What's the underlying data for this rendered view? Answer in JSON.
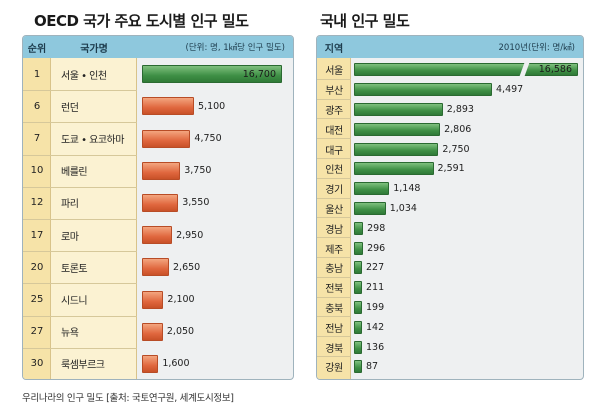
{
  "chart_data": [
    {
      "type": "bar",
      "orientation": "horizontal",
      "title": "OECD 국가 주요 도시별 인구 밀도",
      "headers": {
        "rank": "순위",
        "name": "국가명",
        "unit_note": "(단위: 명, 1㎢당 인구 밀도)"
      },
      "ranks": [
        "1",
        "6",
        "7",
        "10",
        "12",
        "17",
        "20",
        "25",
        "27",
        "30"
      ],
      "categories": [
        "서울 • 인천",
        "런던",
        "도쿄 • 요코하마",
        "베를린",
        "파리",
        "로마",
        "토론토",
        "시드니",
        "뉴욕",
        "룩셈부르크"
      ],
      "values": [
        16700,
        5100,
        4750,
        3750,
        3550,
        2950,
        2650,
        2100,
        2050,
        1600
      ],
      "labels": [
        "16,700",
        "5,100",
        "4,750",
        "3,750",
        "3,550",
        "2,950",
        "2,650",
        "2,100",
        "2,050",
        "1,600"
      ],
      "axis_break": false
    },
    {
      "type": "bar",
      "orientation": "horizontal",
      "title": "국내 인구 밀도",
      "headers": {
        "region": "지역",
        "unit_note": "2010년(단위: 명/㎢)"
      },
      "categories": [
        "서울",
        "부산",
        "광주",
        "대전",
        "대구",
        "인천",
        "경기",
        "울산",
        "경남",
        "제주",
        "충남",
        "전북",
        "충북",
        "전남",
        "경북",
        "강원"
      ],
      "values": [
        16586,
        4497,
        2893,
        2806,
        2750,
        2591,
        1148,
        1034,
        298,
        296,
        227,
        211,
        199,
        142,
        136,
        87
      ],
      "labels": [
        "16,586",
        "4,497",
        "2,893",
        "2,806",
        "2,750",
        "2,591",
        "1,148",
        "1,034",
        "298",
        "296",
        "227",
        "211",
        "199",
        "142",
        "136",
        "87"
      ],
      "axis_break": true
    }
  ],
  "caption": "우리나라의 인구 밀도 [출처: 국토연구원, 세계도시정보]",
  "colors": {
    "header": "#8ec8dd",
    "rank_col": "#f6e3a8",
    "name_col": "#fbf2d2",
    "orange_bar": "#e0673e",
    "green_bar": "#3e8f45",
    "panel_bg": "#eef0f1"
  }
}
